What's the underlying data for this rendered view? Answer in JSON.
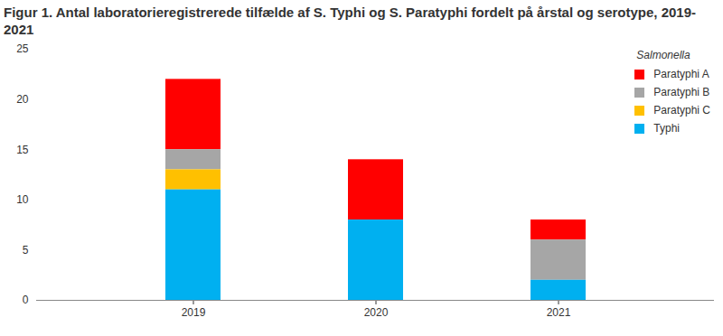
{
  "chart_data": {
    "type": "bar",
    "stacked": true,
    "title": "Figur 1. Antal laboratorieregistrerede tilfælde af S. Typhi og S. Paratyphi fordelt på årstal og serotype, 2019-2021",
    "legend_title": "Salmonella",
    "legend": "upper right",
    "grid": false,
    "categories": [
      "2019",
      "2020",
      "2021"
    ],
    "series": [
      {
        "name": "Paratyphi A",
        "color": "#ff0000",
        "values": [
          7,
          6,
          2
        ]
      },
      {
        "name": "Paratyphi B",
        "color": "#a6a6a6",
        "values": [
          2,
          0,
          4
        ]
      },
      {
        "name": "Paratyphi C",
        "color": "#ffc000",
        "values": [
          2,
          0,
          0
        ]
      },
      {
        "name": "Typhi",
        "color": "#00b0f0",
        "values": [
          11,
          8,
          2
        ]
      }
    ],
    "ylim": [
      0,
      25
    ],
    "yticks": [
      0,
      5,
      10,
      15,
      20,
      25
    ]
  }
}
